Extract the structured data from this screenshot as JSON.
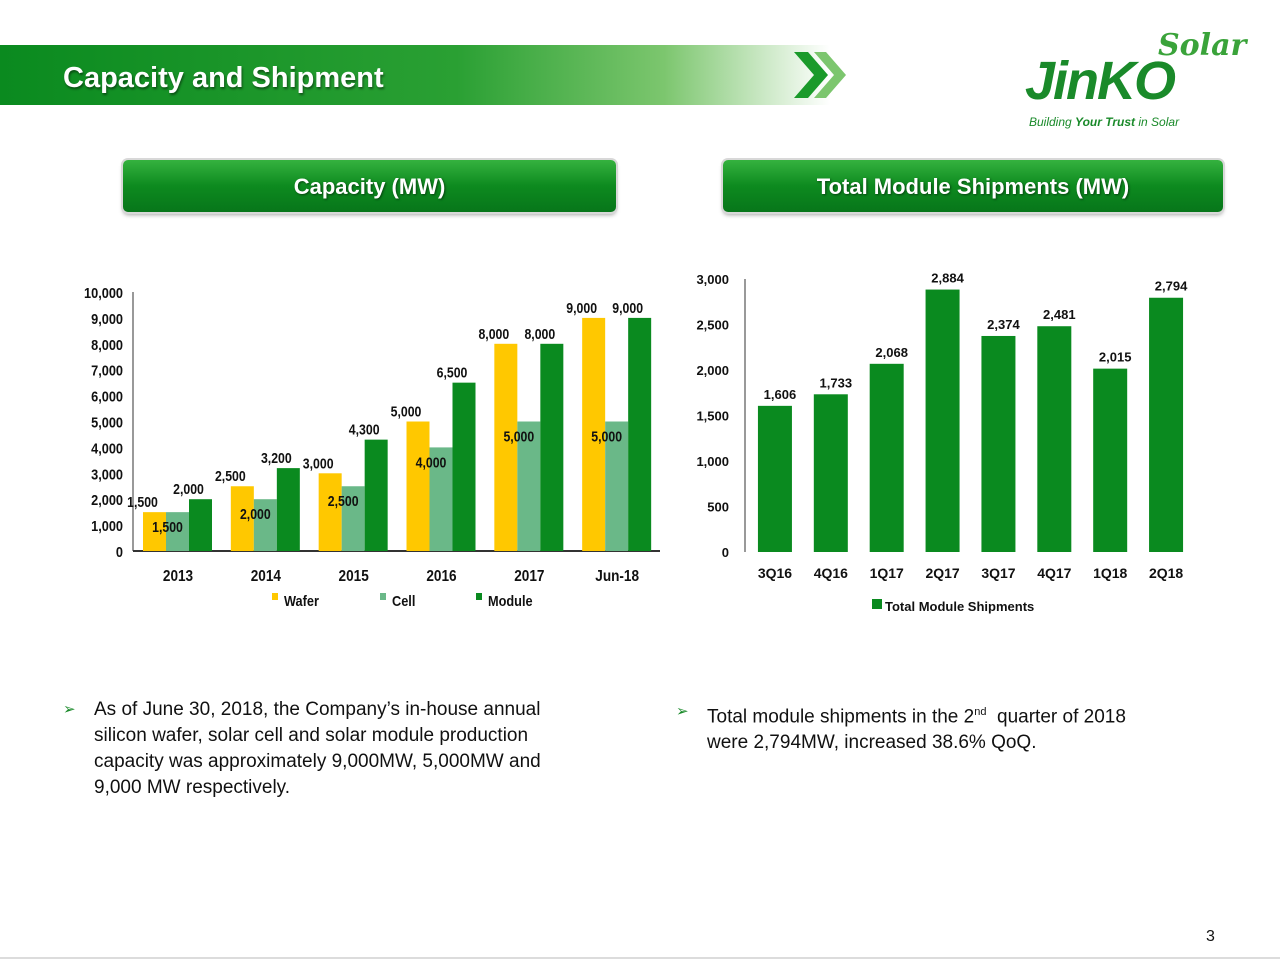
{
  "header": {
    "title": "Capacity and Shipment"
  },
  "logo": {
    "word": "JinKO",
    "script": "Solar",
    "tagline_a": "Building ",
    "tagline_b": "Your Trust",
    "tagline_c": " in Solar"
  },
  "colors": {
    "green": "#0a8a1f",
    "yellow": "#ffc800",
    "cell": "#6ab888",
    "module": "#0a8a1f"
  },
  "panels": {
    "left_title": "Capacity (MW)",
    "right_title": "Total Module Shipments (MW)"
  },
  "chart_data": [
    {
      "type": "bar",
      "title": "Capacity (MW)",
      "categories": [
        "2013",
        "2014",
        "2015",
        "2016",
        "2017",
        "Jun-18"
      ],
      "series": [
        {
          "name": "Wafer",
          "values": [
            1500,
            2500,
            3000,
            5000,
            8000,
            9000
          ]
        },
        {
          "name": "Cell",
          "values": [
            1500,
            2000,
            2500,
            4000,
            5000,
            5000
          ]
        },
        {
          "name": "Module",
          "values": [
            2000,
            3200,
            4300,
            6500,
            8000,
            9000
          ]
        }
      ],
      "ylim": [
        0,
        10000
      ],
      "yticks": [
        0,
        1000,
        2000,
        3000,
        4000,
        5000,
        6000,
        7000,
        8000,
        9000,
        10000
      ],
      "ytick_labels": [
        "0",
        "1,000",
        "2,000",
        "3,000",
        "4,000",
        "5,000",
        "6,000",
        "7,000",
        "8,000",
        "9,000",
        "10,000"
      ],
      "data_labels": [
        [
          "1,500",
          "1,500",
          "2,000"
        ],
        [
          "2,500",
          "2,000",
          "3,200"
        ],
        [
          "3,000",
          "2,500",
          "4,300"
        ],
        [
          "5,000",
          "4,000",
          "6,500"
        ],
        [
          "8,000",
          "5,000",
          "8,000"
        ],
        [
          "9,000",
          "5,000",
          "9,000"
        ]
      ],
      "legend": "bottom",
      "grid": false
    },
    {
      "type": "bar",
      "title": "Total Module Shipments (MW)",
      "categories": [
        "3Q16",
        "4Q16",
        "1Q17",
        "2Q17",
        "3Q17",
        "4Q17",
        "1Q18",
        "2Q18"
      ],
      "series": [
        {
          "name": "Total Module Shipments",
          "values": [
            1606,
            1733,
            2068,
            2884,
            2374,
            2481,
            2015,
            2794
          ]
        }
      ],
      "data_labels": [
        "1,606",
        "1,733",
        "2,068",
        "2,884",
        "2,374",
        "2,481",
        "2,015",
        "2,794"
      ],
      "ylim": [
        0,
        3000
      ],
      "yticks": [
        0,
        500,
        1000,
        1500,
        2000,
        2500,
        3000
      ],
      "ytick_labels": [
        "0",
        "500",
        "1,000",
        "1,500",
        "2,000",
        "2,500",
        "3,000"
      ],
      "legend": "bottom",
      "grid": false
    }
  ],
  "bullets": {
    "left": "As of June 30, 2018, the Company’s in-house annual silicon wafer, solar cell and solar module production capacity was approximately 9,000MW, 5,000MW and 9,000 MW respectively.",
    "left_lines": [
      "As of June 30, 2018, the Company’s in-house annual",
      "silicon wafer, solar cell and solar module production",
      "capacity was approximately 9,000MW, 5,000MW and",
      "9,000 MW respectively."
    ],
    "right_line1_pre": "Total module shipments in the 2",
    "right_line1_sup": "nd",
    "right_line1_post": "  quarter of 2018",
    "right_line2": "were 2,794MW, increased 38.6% QoQ."
  },
  "page_number": "3"
}
